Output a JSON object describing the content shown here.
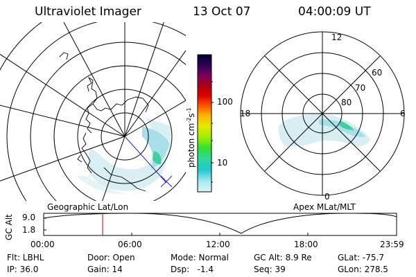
{
  "header": {
    "title": "Ultraviolet Imager",
    "date": "13 Oct 07",
    "time": "04:00:09 UT"
  },
  "geo_panel": {
    "label": "Geographic Lat/Lon"
  },
  "apex_panel": {
    "label": "Apex MLat/MLT",
    "mlt_labels": {
      "top": "12",
      "left": "18",
      "right": "6",
      "bottom": "0"
    },
    "lat_labels": [
      "60",
      "70",
      "80"
    ]
  },
  "colorbar": {
    "unit_label": "photon cm",
    "unit_sup1": "-2",
    "unit_mid": "s",
    "unit_sup2": "-1",
    "tick_100": "100",
    "tick_10": "10",
    "scale": "log",
    "colors": [
      "#000033",
      "#2a0055",
      "#7a0060",
      "#b00010",
      "#e00000",
      "#ff6000",
      "#ffb000",
      "#e8e800",
      "#a0f000",
      "#30e030",
      "#30d8a0",
      "#20c8d0",
      "#a0e8f0",
      "#e0f4f8"
    ]
  },
  "timeline": {
    "ylabel": "GC Alt",
    "ytick_top": "9.0",
    "ytick_bottom": "1.8",
    "xticks": [
      "00:00",
      "06:00",
      "12:00",
      "18:00",
      "23:59"
    ],
    "marker_time": "04:00",
    "marker_color": "#cc0000"
  },
  "info": {
    "filter": "Flt: LBHL",
    "ip": "IP: 36.0",
    "door": "Door: Open",
    "gain": "Gain: 14",
    "mode": "Mode: Normal",
    "dsp": "Dsp:   -1.4",
    "gcalt": "GC Alt: 8.9 Re",
    "seq": "Seq: 39",
    "glat": "GLat: -75.7",
    "glon": "GLon: 278.5"
  }
}
